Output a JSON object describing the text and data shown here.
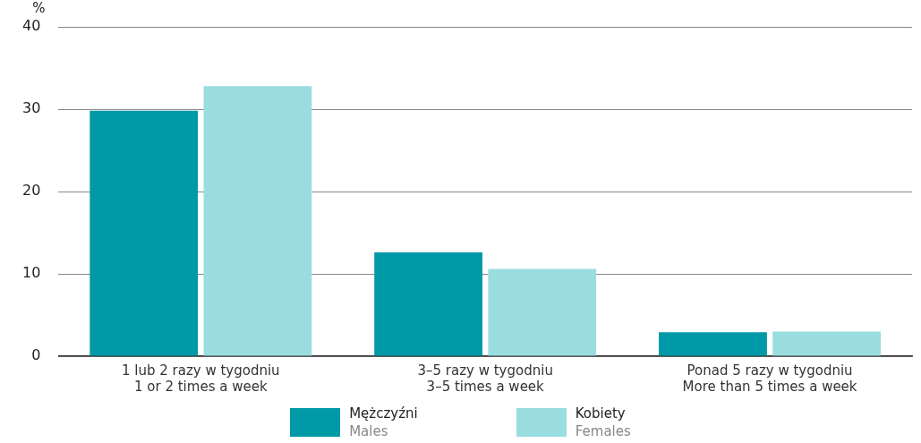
{
  "chart_data": {
    "type": "bar",
    "ylabel": "%",
    "categories": [
      "1 lub 2 razy w tygodniu\n1 or 2 times a week",
      "3–5 razy w tygodniu\n3–5 times a week",
      "Ponad 5 razy w tygodniu\nMore than 5 times a week"
    ],
    "series": [
      {
        "name": "Mężczyźni\nMales",
        "color": "#0099a8",
        "values": [
          29.8,
          12.6,
          2.9
        ]
      },
      {
        "name": "Kobiety\nFemales",
        "color": "#9adde0",
        "values": [
          32.8,
          10.6,
          3.0
        ]
      }
    ],
    "ylim": [
      0,
      40
    ],
    "yticks": [
      0,
      10,
      20,
      30,
      40
    ],
    "grid": "y",
    "legend": "bottom"
  }
}
